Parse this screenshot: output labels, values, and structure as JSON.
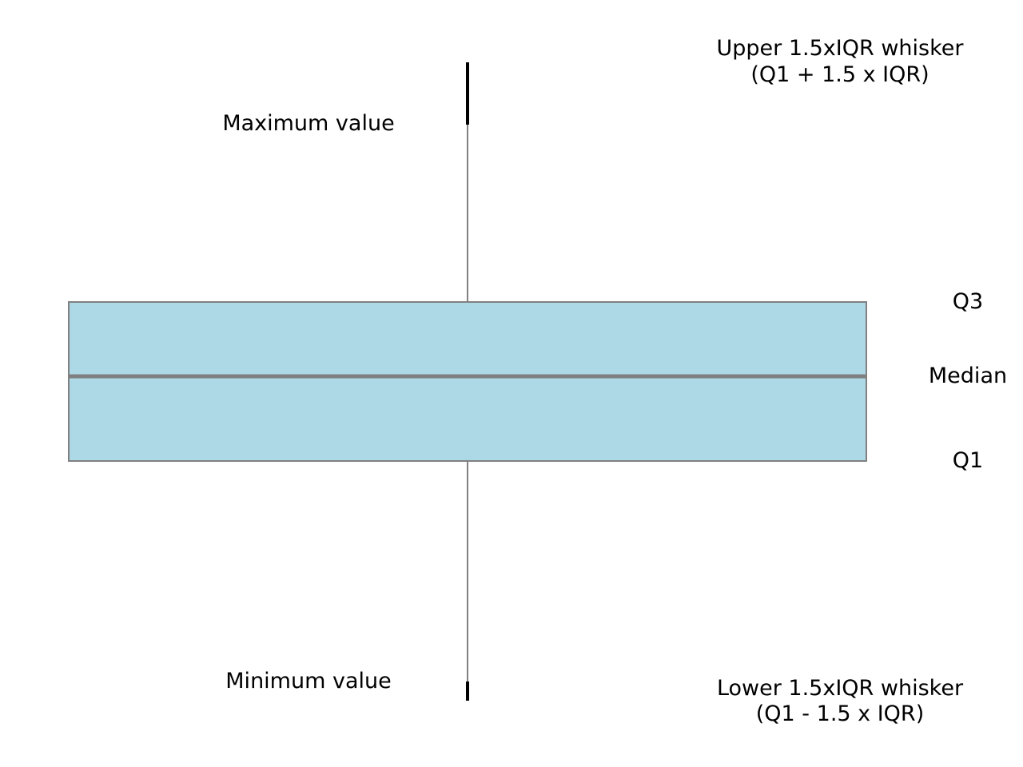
{
  "diagram": {
    "labels": {
      "maximum": "Maximum value",
      "minimum": "Minimum value",
      "q3": "Q3",
      "median": "Median",
      "q1": "Q1",
      "upper_whisker_line1": "Upper 1.5xIQR whisker",
      "upper_whisker_line2": "(Q1 + 1.5 x IQR)",
      "lower_whisker_line1": "Lower 1.5xIQR whisker",
      "lower_whisker_line2": "(Q1 - 1.5 x IQR)"
    },
    "colors": {
      "box_fill": "#add8e6",
      "box_stroke": "#808080",
      "whisker": "#808080",
      "median_line": "#808080",
      "cap": "#000000",
      "text": "#000000"
    }
  }
}
